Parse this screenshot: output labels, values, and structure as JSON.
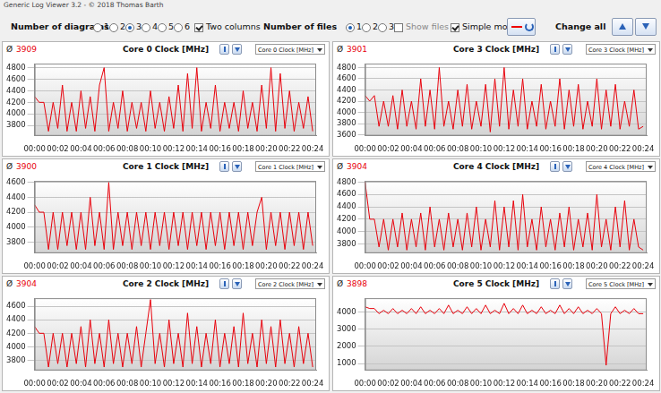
{
  "window": {
    "title": "Generic Log Viewer 3.2 - © 2018 Thomas Barth",
    "diagrams": {
      "label": "Number of diagrams",
      "options": [
        "1",
        "2",
        "3",
        "4",
        "5",
        "6"
      ],
      "selected": "3"
    },
    "two_columns": {
      "text": "Two columns",
      "checked": true
    },
    "files": {
      "label": "Number of files",
      "options": [
        "1",
        "2",
        "3"
      ],
      "selected": "1"
    },
    "show_files": {
      "text": "Show files",
      "checked": false
    },
    "simple_mode": {
      "text": "Simple mode",
      "checked": true
    },
    "change_all": "Change all"
  },
  "chart_data": [
    {
      "type": "line",
      "title": "Core 0 Clock [MHz]",
      "selector": "Core 0 Clock [MHz]",
      "average_symbol": "Ø",
      "average": 3909,
      "color": "#e8000b",
      "grid": true,
      "x": [
        0,
        0.4,
        0.8,
        1.2,
        1.6,
        2,
        2.4,
        2.8,
        3.2,
        3.6,
        4,
        4.4,
        4.8,
        5.2,
        5.6,
        6,
        6.4,
        6.8,
        7.2,
        7.6,
        8,
        8.4,
        8.8,
        9.2,
        9.6,
        10,
        10.4,
        10.8,
        11.2,
        11.6,
        12,
        12.4,
        12.8,
        13.2,
        13.6,
        14,
        14.4,
        14.8,
        15.2,
        15.6,
        16,
        16.4,
        16.8,
        17.2,
        17.6,
        18,
        18.4,
        18.8,
        19.2,
        19.6,
        20,
        20.4,
        20.8,
        21.2,
        21.6,
        22,
        22.4,
        22.8,
        23.2,
        23.6,
        24
      ],
      "values": [
        4300,
        4200,
        4200,
        3700,
        4200,
        3750,
        4500,
        3700,
        4200,
        3700,
        4400,
        3750,
        4300,
        3700,
        4500,
        4800,
        3700,
        4200,
        3750,
        4400,
        3700,
        4200,
        3750,
        4200,
        3700,
        4400,
        3750,
        4200,
        3700,
        4300,
        3750,
        4500,
        3700,
        4700,
        3750,
        4800,
        3700,
        4200,
        3750,
        4500,
        3700,
        4200,
        3750,
        4200,
        3700,
        4400,
        3750,
        4200,
        3700,
        4500,
        3750,
        4800,
        3700,
        4700,
        3750,
        4400,
        3700,
        4200,
        3750,
        4300,
        3700
      ],
      "xlim": [
        0,
        24.3
      ],
      "xticks": [
        {
          "value": 0,
          "label": "00:00"
        },
        {
          "value": 2,
          "label": "00:02"
        },
        {
          "value": 4,
          "label": "00:04"
        },
        {
          "value": 6,
          "label": "00:06"
        },
        {
          "value": 8,
          "label": "00:08"
        },
        {
          "value": 10,
          "label": "00:10"
        },
        {
          "value": 12,
          "label": "00:12"
        },
        {
          "value": 14,
          "label": "00:14"
        },
        {
          "value": 16,
          "label": "00:16"
        },
        {
          "value": 18,
          "label": "00:18"
        },
        {
          "value": 20,
          "label": "00:20"
        },
        {
          "value": 22,
          "label": "00:22"
        },
        {
          "value": 24,
          "label": "00:24"
        }
      ],
      "ylim": [
        3620,
        4870
      ],
      "yticks": [
        3800,
        4000,
        4200,
        4400,
        4600,
        4800
      ]
    },
    {
      "type": "line",
      "title": "Core 3 Clock [MHz]",
      "selector": "Core 3 Clock [MHz]",
      "average_symbol": "Ø",
      "average": 3901,
      "color": "#e8000b",
      "grid": true,
      "x": [
        0,
        0.4,
        0.8,
        1.2,
        1.6,
        2,
        2.4,
        2.8,
        3.2,
        3.6,
        4,
        4.4,
        4.8,
        5.2,
        5.6,
        6,
        6.4,
        6.8,
        7.2,
        7.6,
        8,
        8.4,
        8.8,
        9.2,
        9.6,
        10,
        10.4,
        10.8,
        11.2,
        11.6,
        12,
        12.4,
        12.8,
        13.2,
        13.6,
        14,
        14.4,
        14.8,
        15.2,
        15.6,
        16,
        16.4,
        16.8,
        17.2,
        17.6,
        18,
        18.4,
        18.8,
        19.2,
        19.6,
        20,
        20.4,
        20.8,
        21.2,
        21.6,
        22,
        22.4,
        22.8,
        23.2,
        23.6,
        24
      ],
      "values": [
        4300,
        4200,
        4300,
        3750,
        4200,
        3750,
        4300,
        3700,
        4400,
        3750,
        4200,
        3700,
        4600,
        3750,
        4400,
        3700,
        4800,
        3750,
        4200,
        3700,
        4400,
        3750,
        4500,
        3700,
        4200,
        3750,
        4500,
        3650,
        4600,
        3750,
        4800,
        3700,
        4400,
        3750,
        4600,
        3700,
        4200,
        3750,
        4500,
        3700,
        4200,
        3750,
        4600,
        3700,
        4400,
        3750,
        4500,
        3700,
        4200,
        3750,
        4600,
        3700,
        4400,
        3750,
        4500,
        3700,
        4200,
        3750,
        4400,
        3700,
        3750
      ],
      "xlim": [
        0,
        24.3
      ],
      "xticks": [
        {
          "value": 0,
          "label": "00:00"
        },
        {
          "value": 2,
          "label": "00:02"
        },
        {
          "value": 4,
          "label": "00:04"
        },
        {
          "value": 6,
          "label": "00:06"
        },
        {
          "value": 8,
          "label": "00:08"
        },
        {
          "value": 10,
          "label": "00:10"
        },
        {
          "value": 12,
          "label": "00:12"
        },
        {
          "value": 14,
          "label": "00:14"
        },
        {
          "value": 16,
          "label": "00:16"
        },
        {
          "value": 18,
          "label": "00:18"
        },
        {
          "value": 20,
          "label": "00:20"
        },
        {
          "value": 22,
          "label": "00:22"
        },
        {
          "value": 24,
          "label": "00:24"
        }
      ],
      "ylim": [
        3580,
        4870
      ],
      "yticks": [
        3600,
        3800,
        4000,
        4200,
        4400,
        4600,
        4800
      ]
    },
    {
      "type": "line",
      "title": "Core 1 Clock [MHz]",
      "selector": "Core 1 Clock [MHz]",
      "average_symbol": "Ø",
      "average": 3900,
      "color": "#e8000b",
      "grid": true,
      "x": [
        0,
        0.4,
        0.8,
        1.2,
        1.6,
        2,
        2.4,
        2.8,
        3.2,
        3.6,
        4,
        4.4,
        4.8,
        5.2,
        5.6,
        6,
        6.4,
        6.8,
        7.2,
        7.6,
        8,
        8.4,
        8.8,
        9.2,
        9.6,
        10,
        10.4,
        10.8,
        11.2,
        11.6,
        12,
        12.4,
        12.8,
        13.2,
        13.6,
        14,
        14.4,
        14.8,
        15.2,
        15.6,
        16,
        16.4,
        16.8,
        17.2,
        17.6,
        18,
        18.4,
        18.8,
        19.2,
        19.6,
        20,
        20.4,
        20.8,
        21.2,
        21.6,
        22,
        22.4,
        22.8,
        23.2,
        23.6,
        24
      ],
      "values": [
        4300,
        4200,
        4200,
        3700,
        4200,
        3700,
        4200,
        3750,
        4200,
        3700,
        4200,
        3700,
        4400,
        3750,
        4200,
        3700,
        4600,
        3700,
        4200,
        3750,
        4200,
        3700,
        4200,
        3750,
        4200,
        3700,
        4200,
        3750,
        4200,
        3700,
        4200,
        3750,
        4200,
        3700,
        4200,
        3750,
        4200,
        3700,
        4200,
        3750,
        4200,
        3700,
        4200,
        3750,
        4200,
        3700,
        4200,
        3750,
        4200,
        4400,
        3700,
        4200,
        3750,
        4200,
        3700,
        4200,
        3750,
        4200,
        3700,
        4200,
        3750
      ],
      "xlim": [
        0,
        24.3
      ],
      "xticks": [
        {
          "value": 0,
          "label": "00:00"
        },
        {
          "value": 2,
          "label": "00:02"
        },
        {
          "value": 4,
          "label": "00:04"
        },
        {
          "value": 6,
          "label": "00:06"
        },
        {
          "value": 8,
          "label": "00:08"
        },
        {
          "value": 10,
          "label": "00:10"
        },
        {
          "value": 12,
          "label": "00:12"
        },
        {
          "value": 14,
          "label": "00:14"
        },
        {
          "value": 16,
          "label": "00:16"
        },
        {
          "value": 18,
          "label": "00:18"
        },
        {
          "value": 20,
          "label": "00:20"
        },
        {
          "value": 22,
          "label": "00:22"
        },
        {
          "value": 24,
          "label": "00:24"
        }
      ],
      "ylim": [
        3650,
        4620
      ],
      "yticks": [
        3800,
        4000,
        4200,
        4400,
        4600
      ]
    },
    {
      "type": "line",
      "title": "Core 4 Clock [MHz]",
      "selector": "Core 4 Clock [MHz]",
      "average_symbol": "Ø",
      "average": 3904,
      "color": "#e8000b",
      "grid": true,
      "x": [
        0,
        0.4,
        0.8,
        1.2,
        1.6,
        2,
        2.4,
        2.8,
        3.2,
        3.6,
        4,
        4.4,
        4.8,
        5.2,
        5.6,
        6,
        6.4,
        6.8,
        7.2,
        7.6,
        8,
        8.4,
        8.8,
        9.2,
        9.6,
        10,
        10.4,
        10.8,
        11.2,
        11.6,
        12,
        12.4,
        12.8,
        13.2,
        13.6,
        14,
        14.4,
        14.8,
        15.2,
        15.6,
        16,
        16.4,
        16.8,
        17.2,
        17.6,
        18,
        18.4,
        18.8,
        19.2,
        19.6,
        20,
        20.4,
        20.8,
        21.2,
        21.6,
        22,
        22.4,
        22.8,
        23.2,
        23.6,
        24
      ],
      "values": [
        4800,
        4200,
        4200,
        3750,
        4200,
        3700,
        4200,
        3750,
        4300,
        3700,
        4200,
        3750,
        4300,
        3700,
        4400,
        3750,
        4200,
        3700,
        4300,
        3750,
        4200,
        3700,
        4300,
        3750,
        4400,
        3700,
        4200,
        3750,
        4500,
        3700,
        4400,
        3750,
        4500,
        3700,
        4600,
        3750,
        4200,
        3700,
        4400,
        3750,
        4200,
        3700,
        4300,
        3750,
        4400,
        3700,
        4200,
        3750,
        4300,
        3700,
        4600,
        3750,
        4200,
        3700,
        4400,
        3750,
        4500,
        3700,
        4200,
        3750,
        3700
      ],
      "xlim": [
        0,
        24.3
      ],
      "xticks": [
        {
          "value": 0,
          "label": "00:00"
        },
        {
          "value": 2,
          "label": "00:02"
        },
        {
          "value": 4,
          "label": "00:04"
        },
        {
          "value": 6,
          "label": "00:06"
        },
        {
          "value": 8,
          "label": "00:08"
        },
        {
          "value": 10,
          "label": "00:10"
        },
        {
          "value": 12,
          "label": "00:12"
        },
        {
          "value": 14,
          "label": "00:14"
        },
        {
          "value": 16,
          "label": "00:16"
        },
        {
          "value": 18,
          "label": "00:18"
        },
        {
          "value": 20,
          "label": "00:20"
        },
        {
          "value": 22,
          "label": "00:22"
        },
        {
          "value": 24,
          "label": "00:24"
        }
      ],
      "ylim": [
        3650,
        4820
      ],
      "yticks": [
        3800,
        4000,
        4200,
        4400,
        4600,
        4800
      ]
    },
    {
      "type": "line",
      "title": "Core 2 Clock [MHz]",
      "selector": "Core 2 Clock [MHz]",
      "average_symbol": "Ø",
      "average": 3904,
      "color": "#e8000b",
      "grid": true,
      "x": [
        0,
        0.4,
        0.8,
        1.2,
        1.6,
        2,
        2.4,
        2.8,
        3.2,
        3.6,
        4,
        4.4,
        4.8,
        5.2,
        5.6,
        6,
        6.4,
        6.8,
        7.2,
        7.6,
        8,
        8.4,
        8.8,
        9.2,
        9.6,
        10,
        10.4,
        10.8,
        11.2,
        11.6,
        12,
        12.4,
        12.8,
        13.2,
        13.6,
        14,
        14.4,
        14.8,
        15.2,
        15.6,
        16,
        16.4,
        16.8,
        17.2,
        17.6,
        18,
        18.4,
        18.8,
        19.2,
        19.6,
        20,
        20.4,
        20.8,
        21.2,
        21.6,
        22,
        22.4,
        22.8,
        23.2,
        23.6,
        24
      ],
      "values": [
        4300,
        4200,
        4200,
        3700,
        4200,
        3750,
        4200,
        3700,
        4200,
        3750,
        4300,
        3700,
        4400,
        3750,
        4200,
        3700,
        4400,
        3750,
        4200,
        3700,
        4200,
        3750,
        4300,
        3700,
        4200,
        4700,
        3750,
        4200,
        3700,
        4400,
        3750,
        4200,
        3700,
        4500,
        3750,
        4300,
        3700,
        4200,
        3750,
        4400,
        3700,
        4200,
        3750,
        4300,
        3700,
        4500,
        3750,
        4200,
        3700,
        4400,
        3750,
        4300,
        3700,
        4400,
        3750,
        4200,
        3700,
        4300,
        3750,
        4200,
        3700
      ],
      "xlim": [
        0,
        24.3
      ],
      "xticks": [
        {
          "value": 0,
          "label": "00:00"
        },
        {
          "value": 2,
          "label": "00:02"
        },
        {
          "value": 4,
          "label": "00:04"
        },
        {
          "value": 6,
          "label": "00:06"
        },
        {
          "value": 8,
          "label": "00:08"
        },
        {
          "value": 10,
          "label": "00:10"
        },
        {
          "value": 12,
          "label": "00:12"
        },
        {
          "value": 14,
          "label": "00:14"
        },
        {
          "value": 16,
          "label": "00:16"
        },
        {
          "value": 18,
          "label": "00:18"
        },
        {
          "value": 20,
          "label": "00:20"
        },
        {
          "value": 22,
          "label": "00:22"
        },
        {
          "value": 24,
          "label": "00:24"
        }
      ],
      "ylim": [
        3650,
        4720
      ],
      "yticks": [
        3800,
        4000,
        4200,
        4400,
        4600
      ]
    },
    {
      "type": "line",
      "title": "Core 5 Clock [MHz]",
      "selector": "Core 5 Clock [MHz]",
      "average_symbol": "Ø",
      "average": 3898,
      "color": "#e8000b",
      "grid": true,
      "x": [
        0,
        0.4,
        0.8,
        1.2,
        1.6,
        2,
        2.4,
        2.8,
        3.2,
        3.6,
        4,
        4.4,
        4.8,
        5.2,
        5.6,
        6,
        6.4,
        6.8,
        7.2,
        7.6,
        8,
        8.4,
        8.8,
        9.2,
        9.6,
        10,
        10.4,
        10.8,
        11.2,
        11.6,
        12,
        12.4,
        12.8,
        13.2,
        13.6,
        14,
        14.4,
        14.8,
        15.2,
        15.6,
        16,
        16.4,
        16.8,
        17.2,
        17.6,
        18,
        18.4,
        18.8,
        19.2,
        19.6,
        20,
        20.4,
        20.8,
        21.2,
        21.6,
        22,
        22.4,
        22.8,
        23.2,
        23.6,
        24
      ],
      "values": [
        4300,
        4200,
        4200,
        3900,
        4100,
        3900,
        4200,
        3900,
        4100,
        3900,
        4200,
        3900,
        4300,
        3900,
        4100,
        3900,
        4200,
        3900,
        4400,
        3900,
        4100,
        3900,
        4300,
        3900,
        4200,
        3900,
        4400,
        3900,
        4100,
        3900,
        4500,
        3900,
        4200,
        3900,
        4400,
        3900,
        4100,
        3900,
        4300,
        3900,
        4100,
        3900,
        4400,
        3900,
        4200,
        3900,
        4300,
        3900,
        4100,
        3900,
        4200,
        3900,
        900,
        3900,
        4300,
        3900,
        4100,
        3900,
        4200,
        3900,
        3900
      ],
      "xlim": [
        0,
        24.3
      ],
      "xticks": [
        {
          "value": 0,
          "label": "00:00"
        },
        {
          "value": 2,
          "label": "00:02"
        },
        {
          "value": 4,
          "label": "00:04"
        },
        {
          "value": 6,
          "label": "00:06"
        },
        {
          "value": 8,
          "label": "00:08"
        },
        {
          "value": 10,
          "label": "00:10"
        },
        {
          "value": 12,
          "label": "00:12"
        },
        {
          "value": 14,
          "label": "00:14"
        },
        {
          "value": 16,
          "label": "00:16"
        },
        {
          "value": 18,
          "label": "00:18"
        },
        {
          "value": 20,
          "label": "00:20"
        },
        {
          "value": 22,
          "label": "00:22"
        },
        {
          "value": 24,
          "label": "00:24"
        }
      ],
      "ylim": [
        600,
        4800
      ],
      "yticks": [
        1000,
        2000,
        3000,
        4000
      ]
    }
  ]
}
